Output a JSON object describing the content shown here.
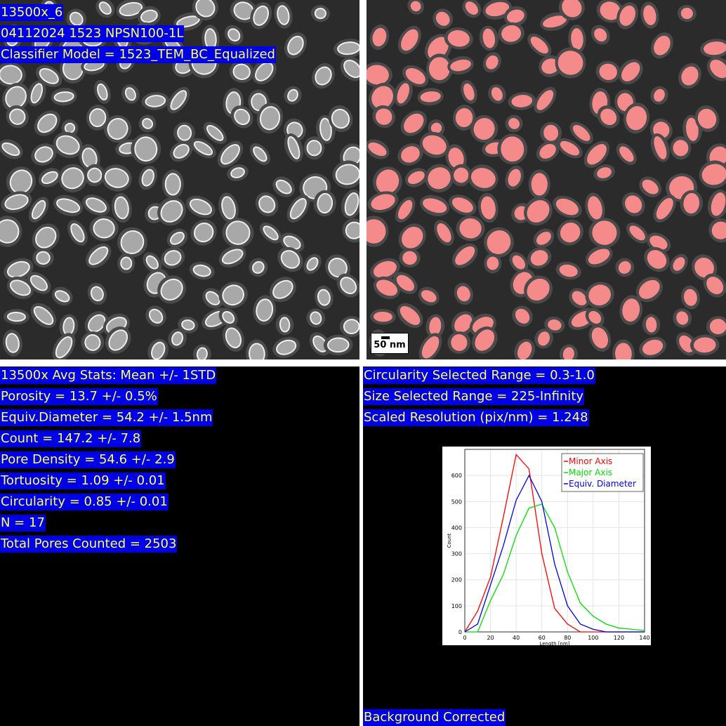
{
  "image_left": {
    "lines": [
      "13500x_6",
      "04112024 1523 NPSN100-1L",
      "Classifier Model = 1523_TEM_BC_Equalized"
    ]
  },
  "image_right": {
    "scale_bar": "50 nm"
  },
  "stats": {
    "lines": [
      "13500x Avg Stats: Mean +/- 1STD",
      "Porosity = 13.7 +/- 0.5%",
      "Equiv.Diameter = 54.2 +/- 1.5nm",
      "Count = 147.2 +/- 7.8",
      "Pore Density = 54.6 +/- 2.9",
      "Tortuosity = 1.09 +/- 0.01",
      "Circularity = 0.85 +/- 0.01",
      "N = 17",
      "Total Pores Counted = 2503"
    ]
  },
  "settings": {
    "lines": [
      "Circularity Selected Range = 0.3-1.0",
      "Size Selected Range = 225-Infinity",
      "Scaled Resolution (pix/nm) = 1.248"
    ]
  },
  "footer": "Background Corrected",
  "chart_data": {
    "type": "line",
    "x_label": "Length [nm]",
    "y_label": "Count",
    "x": [
      0,
      10,
      20,
      30,
      40,
      50,
      60,
      70,
      80,
      90,
      100,
      110,
      120,
      130,
      140
    ],
    "series": [
      {
        "name": "Minor Axis",
        "color": "#ff0000",
        "values": [
          0,
          80,
          210,
          440,
          680,
          625,
          300,
          90,
          30,
          0,
          0,
          0,
          0,
          0,
          0
        ]
      },
      {
        "name": "Major Axis",
        "color": "#00e000",
        "values": [
          0,
          0,
          120,
          220,
          370,
          475,
          490,
          400,
          230,
          110,
          60,
          30,
          15,
          10,
          5
        ]
      },
      {
        "name": "Equiv. Diameter",
        "color": "#0000e0",
        "values": [
          0,
          30,
          180,
          330,
          505,
          600,
          500,
          260,
          100,
          30,
          10,
          0,
          0,
          0,
          0
        ]
      }
    ],
    "xlim": [
      0,
      140
    ],
    "xticks": [
      0,
      20,
      40,
      60,
      80,
      100,
      120,
      140
    ],
    "ylim": [
      0,
      700
    ],
    "yticks": [
      0,
      100,
      200,
      300,
      400,
      500,
      600
    ],
    "grid": true,
    "legend": "upper right"
  }
}
